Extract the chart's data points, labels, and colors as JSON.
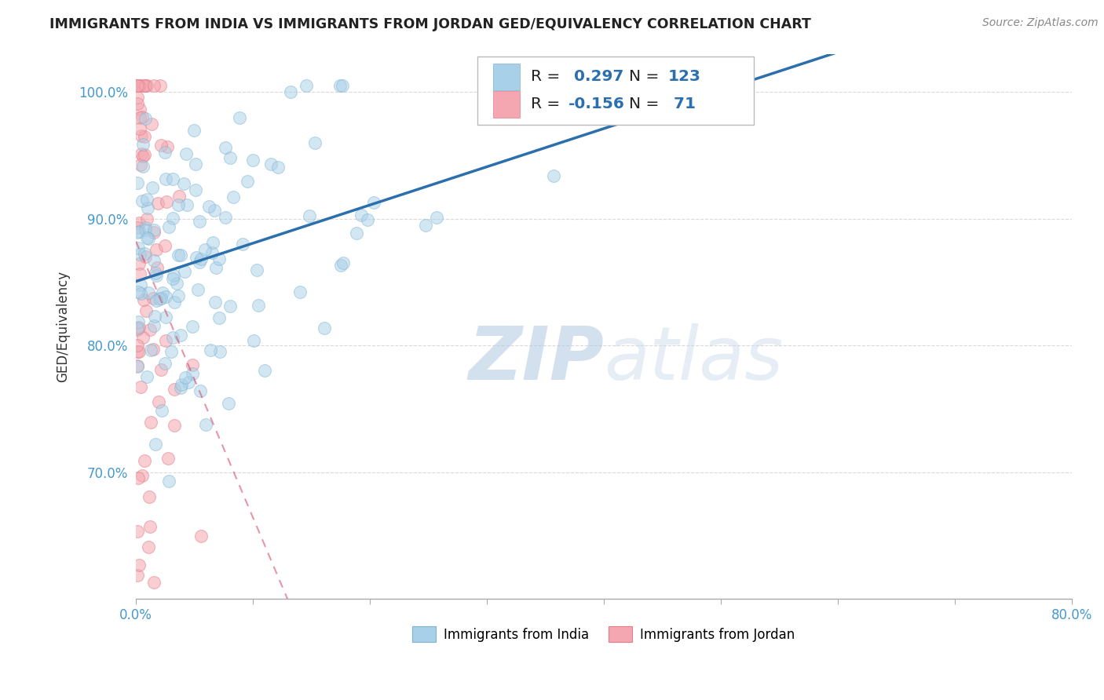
{
  "title": "IMMIGRANTS FROM INDIA VS IMMIGRANTS FROM JORDAN GED/EQUIVALENCY CORRELATION CHART",
  "source": "Source: ZipAtlas.com",
  "ylabel": "GED/Equivalency",
  "xlim": [
    0.0,
    0.8
  ],
  "ylim": [
    0.6,
    1.03
  ],
  "y_ticks": [
    0.7,
    0.8,
    0.9,
    1.0
  ],
  "y_tick_labels": [
    "70.0%",
    "80.0%",
    "90.0%",
    "100.0%"
  ],
  "india_color": "#a8d0e8",
  "jordan_color": "#f4a7b0",
  "india_edge_color": "#7fb3d3",
  "jordan_edge_color": "#e87d8a",
  "india_line_color": "#2c6fad",
  "jordan_line_color": "#d44060",
  "jordan_line_dash": [
    4,
    3
  ],
  "R_india": 0.297,
  "N_india": 123,
  "R_jordan": -0.156,
  "N_jordan": 71,
  "watermark_top": "ZIP",
  "watermark_bot": "atlas",
  "watermark_color": "#c8dff0",
  "background_color": "#ffffff",
  "grid_color": "#d0d0d0",
  "tick_color": "#4499cc",
  "legend_edge_color": "#bbbbbb"
}
